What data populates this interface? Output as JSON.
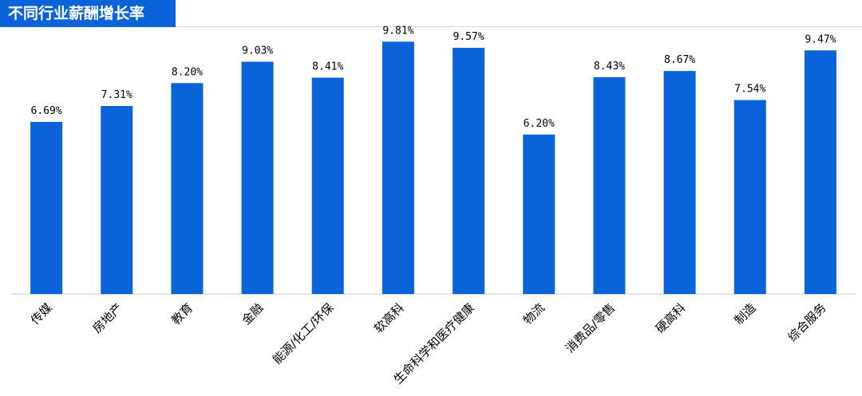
{
  "header": {
    "title": "不同行业薪酬增长率"
  },
  "colors": {
    "bar": "#0a63d9",
    "title_bg": "#0a63d9",
    "axis": "#c8c8c8"
  },
  "chart_data": {
    "type": "bar",
    "title": "不同行业薪酬增长率",
    "xlabel": "",
    "ylabel": "",
    "ylim": [
      0,
      10.5
    ],
    "grid": false,
    "legend": "none",
    "categories": [
      "传媒",
      "房地产",
      "教育",
      "金融",
      "能源/化工/环保",
      "软高科",
      "生命科学和医疗健康",
      "物流",
      "消费品/零售",
      "硬高科",
      "制造",
      "综合服务"
    ],
    "values": [
      6.69,
      7.31,
      8.2,
      9.03,
      8.41,
      9.81,
      9.57,
      6.2,
      8.43,
      8.67,
      7.54,
      9.47
    ],
    "data_labels": [
      "6.69%",
      "7.31%",
      "8.20%",
      "9.03%",
      "8.41%",
      "9.81%",
      "9.57%",
      "6.20%",
      "8.43%",
      "8.67%",
      "7.54%",
      "9.47%"
    ]
  }
}
